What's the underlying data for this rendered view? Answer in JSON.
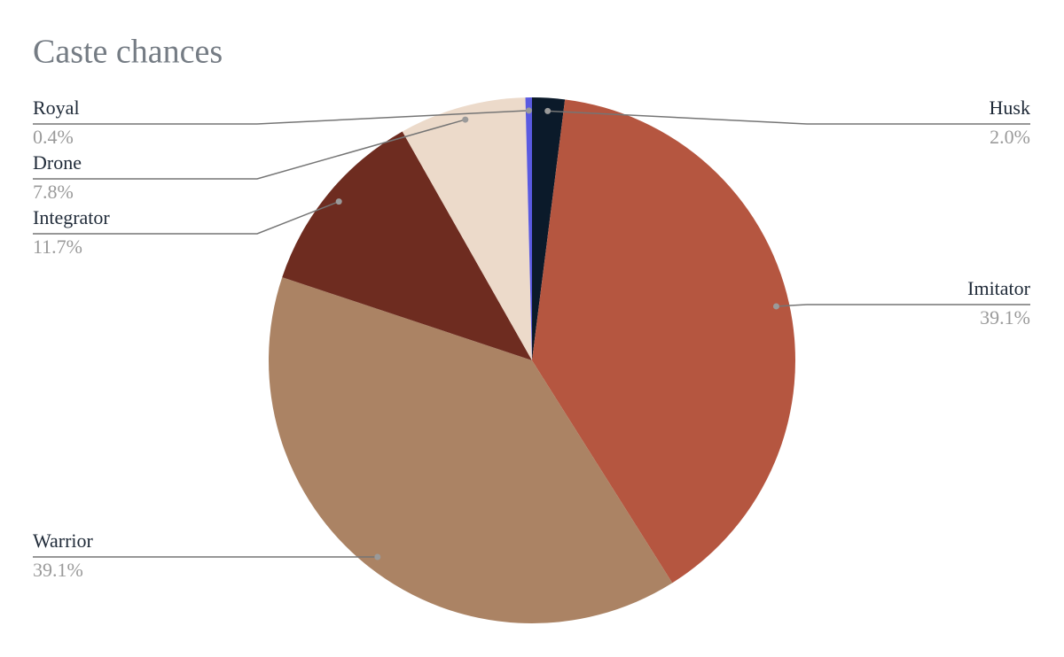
{
  "chart_data": {
    "type": "pie",
    "title": "Caste chances",
    "categories": [
      "Husk",
      "Imitator",
      "Warrior",
      "Integrator",
      "Drone",
      "Royal"
    ],
    "values": [
      2.0,
      39.1,
      39.1,
      11.7,
      7.8,
      0.4
    ],
    "value_labels": [
      "2.0%",
      "39.1%",
      "39.1%",
      "11.7%",
      "7.8%",
      "0.4%"
    ],
    "colors": [
      "#0b1a2a",
      "#b55640",
      "#ab8364",
      "#6e2c20",
      "#ecdaca",
      "#5a5ae0"
    ]
  }
}
